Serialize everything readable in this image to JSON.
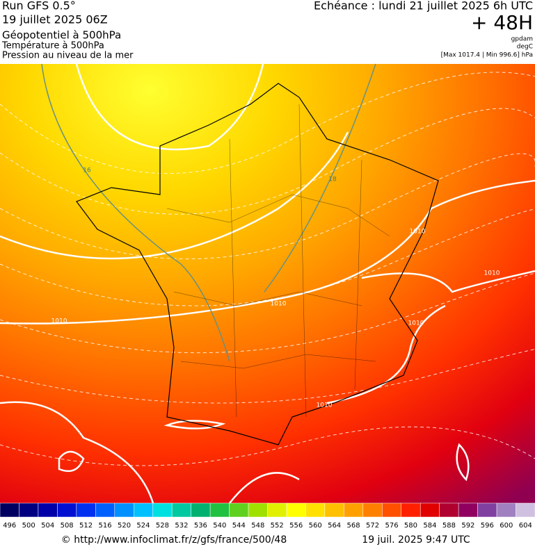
{
  "header": {
    "run": "Run GFS 0.5°",
    "date": "19 juillet 2025 06Z",
    "fields": [
      "Géopotentiel à 500hPa",
      "Température à 500hPa",
      "Pression au niveau de la mer"
    ],
    "echeance": "Echéance : lundi 21 juillet 2025 6h UTC",
    "lead": "+ 48H",
    "units": [
      "gpdam",
      "degC"
    ],
    "extrema": "[Max 1017.4 | Min 996.6] hPa"
  },
  "map": {
    "isobar_labels": [
      1010,
      1010,
      1010,
      1010,
      1010,
      1010
    ],
    "temperature_labels": [
      16,
      18
    ]
  },
  "colorbar": {
    "ticks": [
      496,
      500,
      504,
      508,
      512,
      516,
      520,
      524,
      528,
      532,
      536,
      540,
      544,
      548,
      552,
      556,
      560,
      564,
      568,
      572,
      576,
      580,
      584,
      588,
      592,
      596,
      600,
      604
    ],
    "colors": [
      "#000060",
      "#000080",
      "#0000a8",
      "#0010d0",
      "#0030f0",
      "#0060ff",
      "#0090ff",
      "#00c0ff",
      "#00e0e0",
      "#00c8a0",
      "#00b070",
      "#20c040",
      "#60d020",
      "#a0e000",
      "#e0f000",
      "#ffff00",
      "#ffe000",
      "#ffc000",
      "#ffa000",
      "#ff8000",
      "#ff5000",
      "#ff2000",
      "#e00000",
      "#b00030",
      "#900060",
      "#8040a0",
      "#a080c0",
      "#d0c0e0"
    ]
  },
  "footer": {
    "url": "© http://www.infoclimat.fr/z/gfs/france/500/48",
    "timestamp": "19 juil. 2025  9:47 UTC"
  }
}
